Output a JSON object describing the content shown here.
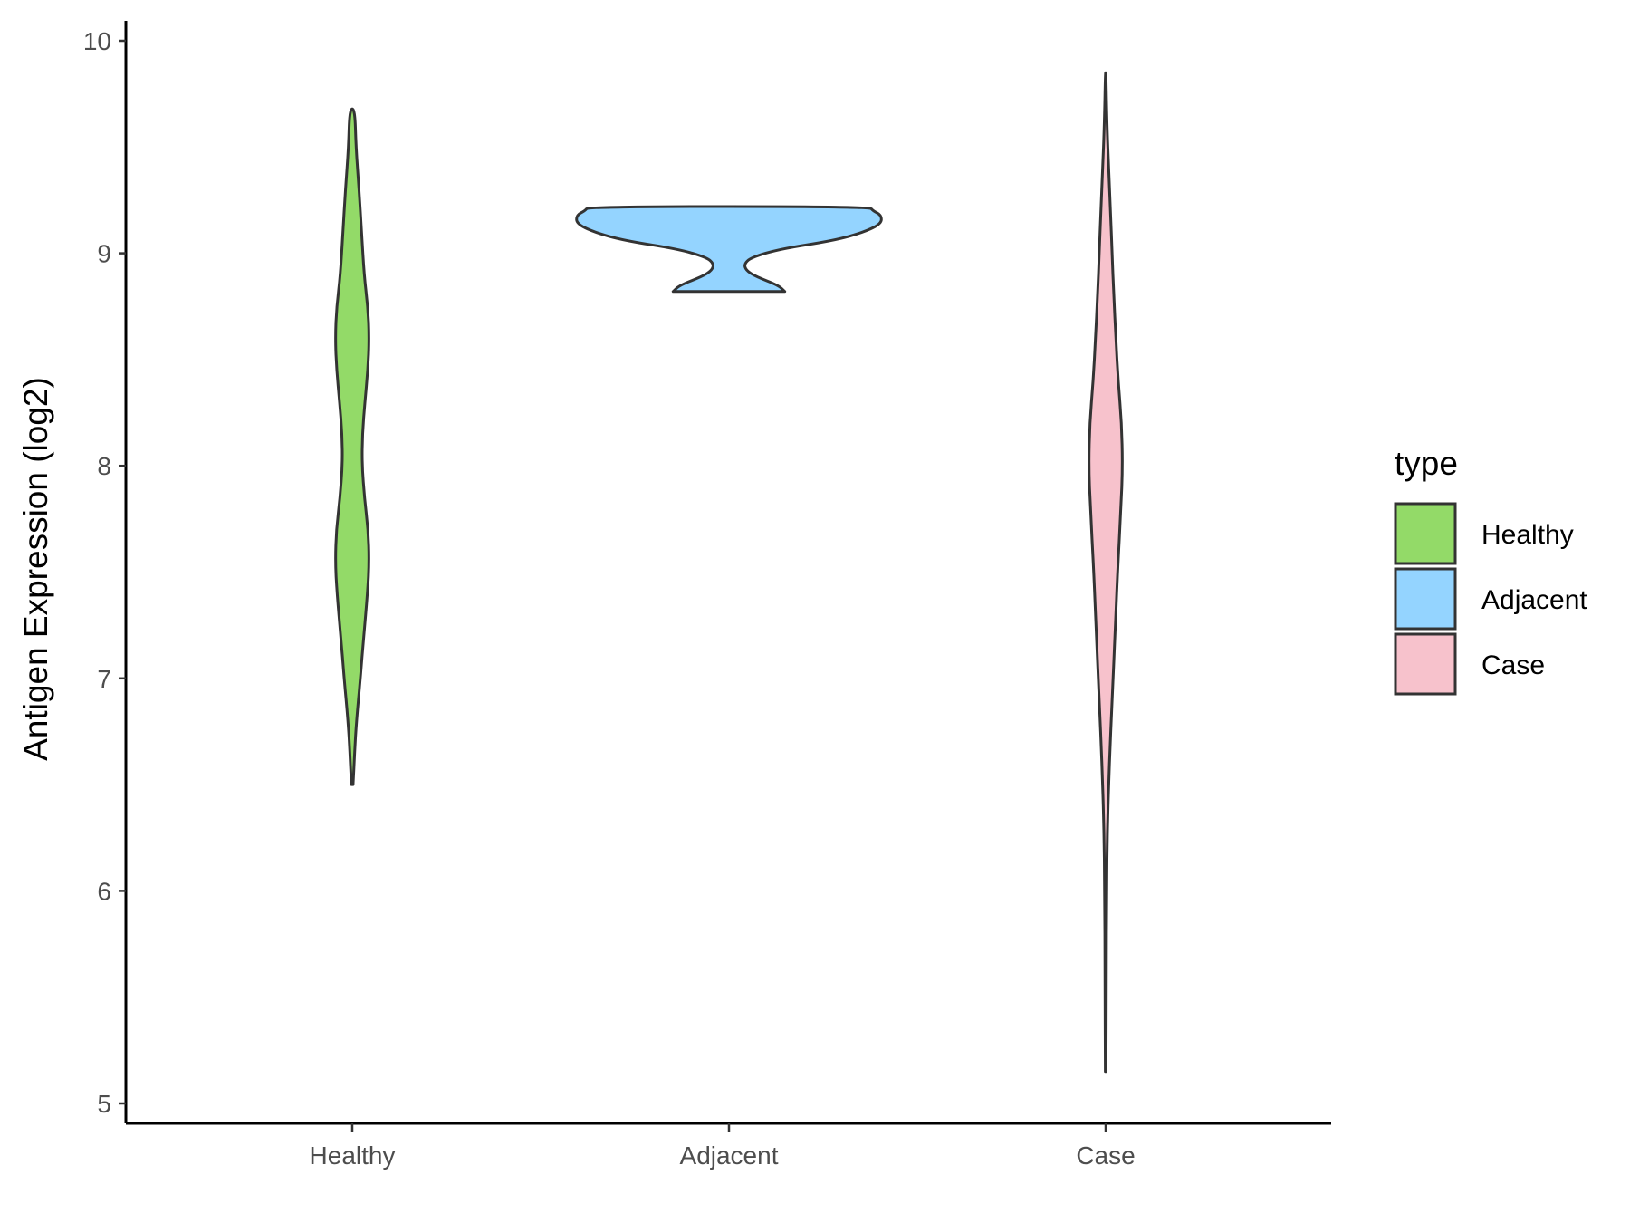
{
  "chart_data": {
    "type": "violin",
    "title": "",
    "xlabel": "",
    "ylabel": "Antigen Expression (log2)",
    "ylim": [
      4.95,
      10.1
    ],
    "yticks": [
      5,
      6,
      7,
      8,
      9,
      10
    ],
    "categories": [
      "Healthy",
      "Adjacent",
      "Case"
    ],
    "legend": {
      "title": "type",
      "position": "right",
      "entries": [
        "Healthy",
        "Adjacent",
        "Case"
      ]
    },
    "series": [
      {
        "name": "Healthy",
        "color": "#93DA68",
        "min": 6.5,
        "max": 9.68,
        "profile": [
          [
            6.5,
            0.005
          ],
          [
            6.65,
            0.014
          ],
          [
            6.8,
            0.025
          ],
          [
            7.0,
            0.048
          ],
          [
            7.2,
            0.068
          ],
          [
            7.4,
            0.09
          ],
          [
            7.55,
            0.1
          ],
          [
            7.7,
            0.094
          ],
          [
            7.85,
            0.072
          ],
          [
            8.0,
            0.058
          ],
          [
            8.15,
            0.06
          ],
          [
            8.3,
            0.075
          ],
          [
            8.45,
            0.092
          ],
          [
            8.6,
            0.1
          ],
          [
            8.75,
            0.092
          ],
          [
            8.9,
            0.07
          ],
          [
            9.1,
            0.055
          ],
          [
            9.3,
            0.04
          ],
          [
            9.5,
            0.022
          ],
          [
            9.68,
            0.015
          ]
        ]
      },
      {
        "name": "Adjacent",
        "color": "#94D4FF",
        "min": 8.82,
        "max": 9.22,
        "profile": [
          [
            8.82,
            0.33
          ],
          [
            8.85,
            0.29
          ],
          [
            8.89,
            0.16
          ],
          [
            8.92,
            0.1
          ],
          [
            8.95,
            0.09
          ],
          [
            8.98,
            0.13
          ],
          [
            9.02,
            0.3
          ],
          [
            9.06,
            0.62
          ],
          [
            9.1,
            0.8
          ],
          [
            9.14,
            0.9
          ],
          [
            9.18,
            0.9
          ],
          [
            9.2,
            0.85
          ],
          [
            9.22,
            0.83
          ]
        ]
      },
      {
        "name": "Case",
        "color": "#F7C2CC",
        "min": 5.15,
        "max": 9.85,
        "profile": [
          [
            5.15,
            0.002
          ],
          [
            5.6,
            0.004
          ],
          [
            6.0,
            0.006
          ],
          [
            6.3,
            0.01
          ],
          [
            6.6,
            0.022
          ],
          [
            6.9,
            0.038
          ],
          [
            7.2,
            0.055
          ],
          [
            7.5,
            0.07
          ],
          [
            7.8,
            0.09
          ],
          [
            8.0,
            0.1
          ],
          [
            8.2,
            0.094
          ],
          [
            8.4,
            0.074
          ],
          [
            8.6,
            0.06
          ],
          [
            8.8,
            0.048
          ],
          [
            9.0,
            0.038
          ],
          [
            9.2,
            0.028
          ],
          [
            9.4,
            0.018
          ],
          [
            9.6,
            0.008
          ],
          [
            9.85,
            0.002
          ]
        ]
      }
    ]
  }
}
